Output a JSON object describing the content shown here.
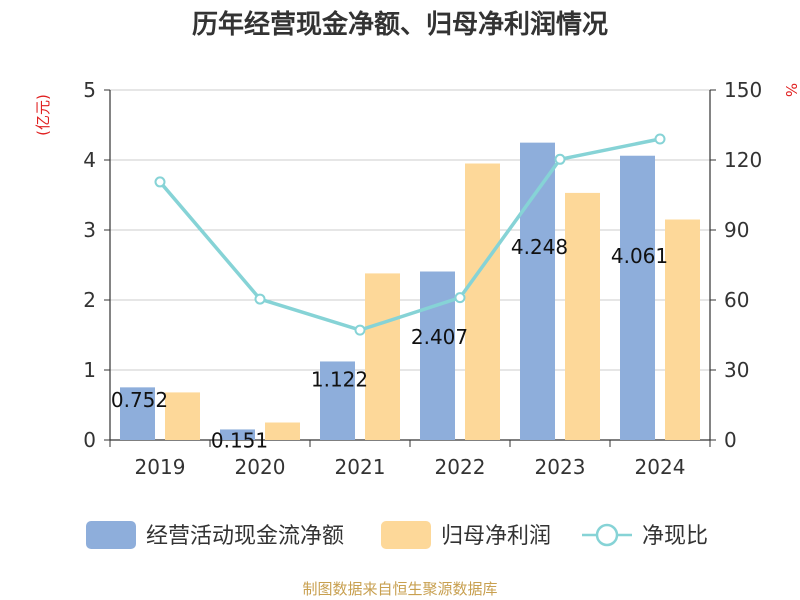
{
  "chart_data": {
    "type": "bar",
    "title": "历年经营现金净额、归母净利润情况",
    "categories": [
      "2019",
      "2020",
      "2021",
      "2022",
      "2023",
      "2024"
    ],
    "series": [
      {
        "name": "经营活动现金流净额",
        "kind": "bar",
        "axis": "left",
        "color": "#8eaedb",
        "values": [
          0.752,
          0.151,
          1.122,
          2.407,
          4.248,
          4.061
        ],
        "labels": [
          "0.752",
          "0.151",
          "1.122",
          "2.407",
          "4.248",
          "4.061"
        ]
      },
      {
        "name": "归母净利润",
        "kind": "bar",
        "axis": "left",
        "color": "#fdd899",
        "values": [
          0.68,
          0.25,
          2.38,
          3.95,
          3.53,
          3.15
        ]
      },
      {
        "name": "净现比",
        "kind": "line",
        "axis": "right",
        "color": "#86d3d6",
        "values": [
          110.6,
          60.4,
          47.1,
          61.0,
          120.3,
          129.0
        ]
      }
    ],
    "left_axis": {
      "unit": "(亿元)",
      "ylim": [
        0,
        5
      ],
      "ticks": [
        "0",
        "1",
        "2",
        "3",
        "4",
        "5"
      ]
    },
    "right_axis": {
      "unit": "%",
      "ylim": [
        0,
        150
      ],
      "ticks": [
        "0",
        "30",
        "60",
        "90",
        "120",
        "150"
      ]
    },
    "legend_position": "bottom",
    "source": "制图数据来自恒生聚源数据库"
  }
}
